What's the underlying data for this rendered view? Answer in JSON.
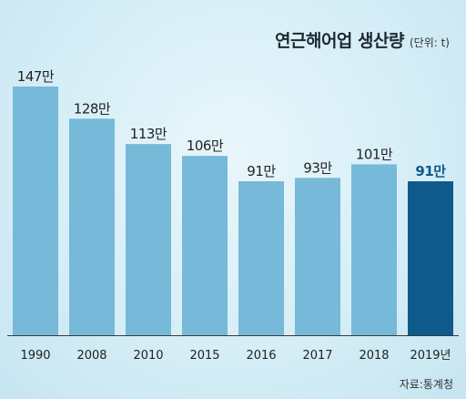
{
  "chart_data": {
    "type": "bar",
    "title": "연근해어업 생산량",
    "unit_note": "(단위: t)",
    "categories": [
      "1990",
      "2008",
      "2010",
      "2015",
      "2016",
      "2017",
      "2018",
      "2019년"
    ],
    "values": [
      147,
      128,
      113,
      106,
      91,
      93,
      101,
      91
    ],
    "data_labels": [
      "147만",
      "128만",
      "113만",
      "106만",
      "91만",
      "93만",
      "101만",
      "91만"
    ],
    "highlight_index": 7,
    "ylim": [
      0,
      150
    ],
    "colors": {
      "bar": "#77b9d8",
      "highlight": "#0e5a8a",
      "highlight_label": "#0e5a8a",
      "label": "#222222"
    },
    "source": "자료:통계청",
    "grid": false
  }
}
